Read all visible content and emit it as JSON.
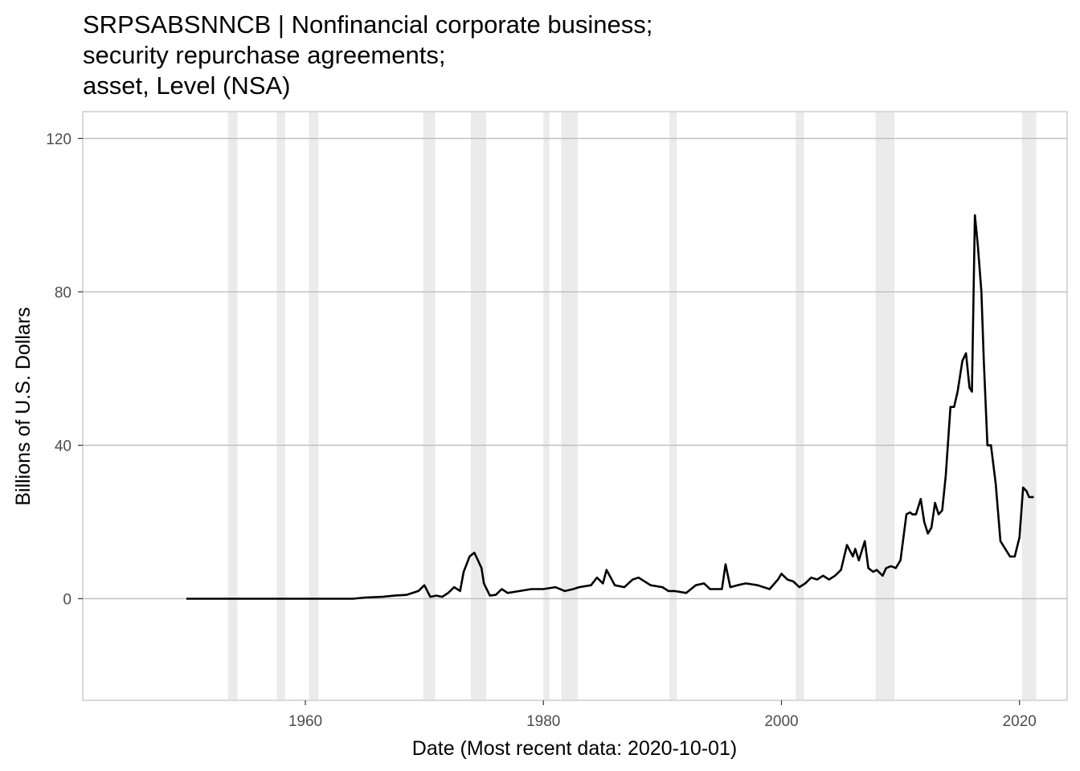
{
  "chart_data": {
    "type": "line",
    "title_lines": [
      "SRPSABSNNCB | Nonfinancial corporate business;",
      "security repurchase agreements;",
      "asset, Level (NSA)"
    ],
    "xlabel": "Date (Most recent data: 2020-10-01)",
    "ylabel": "Billions of U.S. Dollars",
    "xlim": [
      1941.3,
      2024.0
    ],
    "ylim": [
      -26.5,
      127
    ],
    "x_ticks": [
      1960,
      1980,
      2000,
      2020
    ],
    "y_ticks": [
      0,
      40,
      80,
      120
    ],
    "grid": true,
    "recessions": [
      [
        1953.5,
        1954.3
      ],
      [
        1957.6,
        1958.3
      ],
      [
        1960.3,
        1961.1
      ],
      [
        1969.9,
        1970.9
      ],
      [
        1973.9,
        1975.2
      ],
      [
        1980.0,
        1980.5
      ],
      [
        1981.5,
        1982.9
      ],
      [
        1990.6,
        1991.2
      ],
      [
        2001.2,
        2001.9
      ],
      [
        2007.9,
        2009.5
      ],
      [
        2020.2,
        2021.4
      ]
    ],
    "series": [
      {
        "x": [
          1950.0,
          1955.0,
          1960.0,
          1964.0,
          1965.0,
          1966.5,
          1967.5,
          1968.5,
          1969.5,
          1970.0,
          1970.5,
          1971.0,
          1971.5,
          1972.0,
          1972.5,
          1973.0,
          1973.3,
          1973.8,
          1974.2,
          1974.5,
          1974.8,
          1975.0,
          1975.5,
          1976.0,
          1976.5,
          1977.0,
          1978.0,
          1979.0,
          1980.0,
          1981.0,
          1981.8,
          1982.5,
          1983.0,
          1984.0,
          1984.5,
          1985.0,
          1985.3,
          1986.0,
          1986.8,
          1987.5,
          1988.0,
          1989.0,
          1990.0,
          1990.5,
          1991.0,
          1992.0,
          1992.8,
          1993.5,
          1994.0,
          1995.0,
          1995.3,
          1995.7,
          1996.3,
          1997.0,
          1998.0,
          1999.0,
          1999.7,
          2000.0,
          2000.5,
          2001.0,
          2001.5,
          2002.0,
          2002.5,
          2003.0,
          2003.5,
          2004.0,
          2004.5,
          2005.0,
          2005.5,
          2006.0,
          2006.2,
          2006.5,
          2007.0,
          2007.3,
          2007.7,
          2008.0,
          2008.5,
          2008.8,
          2009.2,
          2009.6,
          2010.0,
          2010.5,
          2010.8,
          2011.0,
          2011.3,
          2011.7,
          2012.0,
          2012.3,
          2012.6,
          2012.9,
          2013.2,
          2013.5,
          2013.8,
          2014.2,
          2014.5,
          2014.8,
          2015.2,
          2015.5,
          2015.8,
          2016.0,
          2016.25,
          2016.5,
          2016.8,
          2017.0,
          2017.3,
          2017.6,
          2018.0,
          2018.4,
          2018.8,
          2019.2,
          2019.6,
          2020.0,
          2020.3,
          2020.6,
          2020.8,
          2021.2
        ],
        "y": [
          0.0,
          0.0,
          0.0,
          0.0,
          0.3,
          0.5,
          0.8,
          1.0,
          2.0,
          3.5,
          0.5,
          0.8,
          0.5,
          1.5,
          3.0,
          2.0,
          7.0,
          11.0,
          12.0,
          10.0,
          8.0,
          4.0,
          0.8,
          1.0,
          2.5,
          1.5,
          2.0,
          2.5,
          2.5,
          3.0,
          2.0,
          2.5,
          3.0,
          3.5,
          5.5,
          4.0,
          7.5,
          3.5,
          3.0,
          5.0,
          5.5,
          3.5,
          3.0,
          2.0,
          2.0,
          1.5,
          3.5,
          4.0,
          2.5,
          2.5,
          9.0,
          3.0,
          3.5,
          4.0,
          3.5,
          2.5,
          5.0,
          6.5,
          5.0,
          4.5,
          3.0,
          4.0,
          5.5,
          5.0,
          6.0,
          5.0,
          6.0,
          7.5,
          14.0,
          11.0,
          13.0,
          10.0,
          15.0,
          8.0,
          7.0,
          7.5,
          6.0,
          8.0,
          8.5,
          8.0,
          10.0,
          22.0,
          22.5,
          22.0,
          22.0,
          26.0,
          20.0,
          17.0,
          18.5,
          25.0,
          22.0,
          23.0,
          32.0,
          50.0,
          50.0,
          54.0,
          62.0,
          64.0,
          55.0,
          54.0,
          100.0,
          92.0,
          80.0,
          62.0,
          40.0,
          40.0,
          30.0,
          15.0,
          13.0,
          11.0,
          11.0,
          16.0,
          29.0,
          28.0,
          26.5,
          26.5
        ]
      }
    ]
  }
}
